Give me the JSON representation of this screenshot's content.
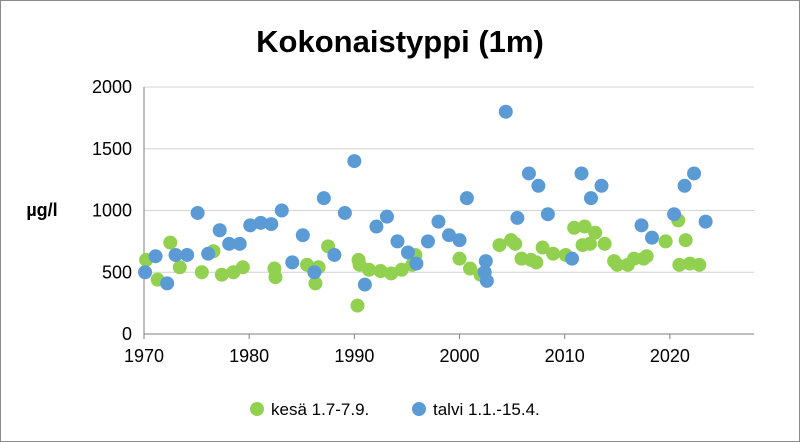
{
  "chart_data": {
    "type": "scatter",
    "title": "Kokonaistyppi (1m)",
    "ylabel": "µg/l",
    "xlabel": "",
    "xlim": [
      1970,
      2028
    ],
    "ylim": [
      0,
      2000
    ],
    "xticks": [
      "1970",
      "1980",
      "1990",
      "2000",
      "2010",
      "2020"
    ],
    "yticks": [
      "0",
      "500",
      "1000",
      "1500",
      "2000"
    ],
    "grid": "horizontal",
    "legend_position": "bottom",
    "series": [
      {
        "name": "kesä 1.7-7.9.",
        "color": "#92d050",
        "points": [
          [
            1970.2,
            600
          ],
          [
            1971.3,
            440
          ],
          [
            1972.5,
            740
          ],
          [
            1973.4,
            540
          ],
          [
            1975.5,
            500
          ],
          [
            1976.6,
            670
          ],
          [
            1977.4,
            480
          ],
          [
            1978.5,
            500
          ],
          [
            1979.4,
            540
          ],
          [
            1982.4,
            530
          ],
          [
            1982.5,
            460
          ],
          [
            1985.5,
            560
          ],
          [
            1986.3,
            410
          ],
          [
            1986.6,
            540
          ],
          [
            1987.5,
            710
          ],
          [
            1990.3,
            230
          ],
          [
            1990.4,
            600
          ],
          [
            1990.5,
            560
          ],
          [
            1991.4,
            520
          ],
          [
            1992.5,
            510
          ],
          [
            1993.5,
            490
          ],
          [
            1994.5,
            520
          ],
          [
            1995.5,
            560
          ],
          [
            1995.8,
            640
          ],
          [
            2000.0,
            610
          ],
          [
            2001.0,
            530
          ],
          [
            2002.0,
            480
          ],
          [
            2003.8,
            720
          ],
          [
            2004.9,
            760
          ],
          [
            2005.3,
            730
          ],
          [
            2005.9,
            610
          ],
          [
            2006.8,
            600
          ],
          [
            2007.3,
            580
          ],
          [
            2007.9,
            700
          ],
          [
            2008.9,
            650
          ],
          [
            2010.1,
            640
          ],
          [
            2010.9,
            860
          ],
          [
            2011.7,
            720
          ],
          [
            2011.9,
            870
          ],
          [
            2012.4,
            730
          ],
          [
            2012.9,
            820
          ],
          [
            2013.8,
            730
          ],
          [
            2014.7,
            590
          ],
          [
            2015.0,
            560
          ],
          [
            2016.0,
            560
          ],
          [
            2016.6,
            610
          ],
          [
            2017.5,
            610
          ],
          [
            2017.8,
            630
          ],
          [
            2019.6,
            750
          ],
          [
            2020.8,
            920
          ],
          [
            2020.9,
            560
          ],
          [
            2021.5,
            760
          ],
          [
            2021.9,
            570
          ],
          [
            2022.8,
            560
          ]
        ]
      },
      {
        "name": "talvi 1.1.-15.4.",
        "color": "#5b9bd5",
        "points": [
          [
            1970.1,
            500
          ],
          [
            1971.1,
            630
          ],
          [
            1972.2,
            410
          ],
          [
            1973.0,
            640
          ],
          [
            1974.1,
            640
          ],
          [
            1975.1,
            980
          ],
          [
            1976.1,
            650
          ],
          [
            1977.2,
            840
          ],
          [
            1978.1,
            730
          ],
          [
            1979.1,
            730
          ],
          [
            1980.1,
            880
          ],
          [
            1981.1,
            900
          ],
          [
            1982.1,
            890
          ],
          [
            1983.1,
            1000
          ],
          [
            1984.1,
            580
          ],
          [
            1985.1,
            800
          ],
          [
            1986.2,
            500
          ],
          [
            1987.1,
            1100
          ],
          [
            1988.1,
            640
          ],
          [
            1989.1,
            980
          ],
          [
            1990.0,
            1400
          ],
          [
            1991.0,
            400
          ],
          [
            1992.1,
            870
          ],
          [
            1993.1,
            950
          ],
          [
            1994.1,
            750
          ],
          [
            1995.1,
            660
          ],
          [
            1995.9,
            570
          ],
          [
            1997.0,
            750
          ],
          [
            1998.0,
            910
          ],
          [
            1999.0,
            800
          ],
          [
            2000.0,
            760
          ],
          [
            2000.7,
            1100
          ],
          [
            2002.4,
            500
          ],
          [
            2002.6,
            430
          ],
          [
            2002.5,
            590
          ],
          [
            2004.4,
            1800
          ],
          [
            2005.5,
            940
          ],
          [
            2006.6,
            1300
          ],
          [
            2007.5,
            1200
          ],
          [
            2008.4,
            970
          ],
          [
            2010.7,
            610
          ],
          [
            2011.6,
            1300
          ],
          [
            2012.5,
            1100
          ],
          [
            2013.5,
            1200
          ],
          [
            2017.3,
            880
          ],
          [
            2018.3,
            780
          ],
          [
            2020.4,
            970
          ],
          [
            2021.4,
            1200
          ],
          [
            2022.3,
            1300
          ],
          [
            2023.4,
            910
          ]
        ]
      }
    ]
  }
}
